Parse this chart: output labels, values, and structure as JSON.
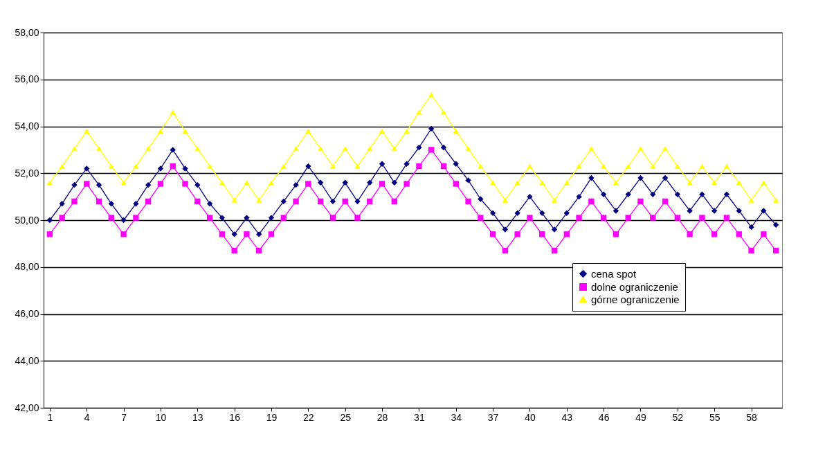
{
  "chart_data": {
    "type": "line",
    "x": [
      1,
      2,
      3,
      4,
      5,
      6,
      7,
      8,
      9,
      10,
      11,
      12,
      13,
      14,
      15,
      16,
      17,
      18,
      19,
      20,
      21,
      22,
      23,
      24,
      25,
      26,
      27,
      28,
      29,
      30,
      31,
      32,
      33,
      34,
      35,
      36,
      37,
      38,
      39,
      40,
      41,
      42,
      43,
      44,
      45,
      46,
      47,
      48,
      49,
      50,
      51,
      52,
      53,
      54,
      55,
      56,
      57,
      58,
      59,
      60
    ],
    "series": [
      {
        "name": "cena spot",
        "color": "#000080",
        "marker": "diamond",
        "values": [
          50.0,
          50.7,
          51.5,
          52.2,
          51.5,
          50.7,
          50.0,
          50.7,
          51.5,
          52.2,
          53.0,
          52.2,
          51.5,
          50.7,
          50.1,
          49.4,
          50.1,
          49.4,
          50.1,
          50.8,
          51.5,
          52.3,
          51.6,
          50.8,
          51.6,
          50.8,
          51.6,
          52.4,
          51.6,
          52.4,
          53.1,
          53.9,
          53.1,
          52.4,
          51.7,
          50.9,
          50.3,
          49.6,
          50.3,
          51.0,
          50.3,
          49.6,
          50.3,
          51.0,
          51.8,
          51.1,
          50.4,
          51.1,
          51.8,
          51.1,
          51.8,
          51.1,
          50.4,
          51.1,
          50.4,
          51.1,
          50.4,
          49.7,
          50.4,
          49.8
        ]
      },
      {
        "name": "dolne ograniczenie",
        "color": "#ff00ff",
        "marker": "square",
        "values": [
          49.4,
          50.1,
          50.8,
          51.55,
          50.8,
          50.1,
          49.4,
          50.1,
          50.8,
          51.55,
          52.3,
          51.55,
          50.8,
          50.1,
          49.4,
          48.7,
          49.4,
          48.7,
          49.4,
          50.1,
          50.8,
          51.55,
          50.8,
          50.1,
          50.8,
          50.1,
          50.8,
          51.55,
          50.8,
          51.55,
          52.3,
          53.0,
          52.3,
          51.55,
          50.8,
          50.1,
          49.4,
          48.7,
          49.4,
          50.1,
          49.4,
          48.7,
          49.4,
          50.1,
          50.8,
          50.1,
          49.4,
          50.1,
          50.8,
          50.1,
          50.8,
          50.1,
          49.4,
          50.1,
          49.4,
          50.1,
          49.4,
          48.7,
          49.4,
          48.7
        ]
      },
      {
        "name": "górne ograniczenie",
        "color": "#ffff00",
        "marker": "triangle",
        "values": [
          51.6,
          52.3,
          53.05,
          53.8,
          53.05,
          52.3,
          51.6,
          52.3,
          53.05,
          53.8,
          54.6,
          53.8,
          53.05,
          52.3,
          51.6,
          50.85,
          51.6,
          50.85,
          51.6,
          52.3,
          53.05,
          53.8,
          53.05,
          52.3,
          53.05,
          52.3,
          53.05,
          53.8,
          53.05,
          53.8,
          54.6,
          55.35,
          54.6,
          53.8,
          53.05,
          52.3,
          51.6,
          50.85,
          51.6,
          52.3,
          51.6,
          50.85,
          51.6,
          52.3,
          53.05,
          52.3,
          51.6,
          52.3,
          53.05,
          52.3,
          53.05,
          52.3,
          51.6,
          52.3,
          51.6,
          52.3,
          51.6,
          50.85,
          51.6,
          50.85
        ]
      }
    ],
    "xlim": [
      0.5,
      60.5
    ],
    "xticks": [
      1,
      4,
      7,
      10,
      13,
      16,
      19,
      22,
      25,
      28,
      31,
      34,
      37,
      40,
      43,
      46,
      49,
      52,
      55,
      58
    ],
    "ylim": [
      42,
      58
    ],
    "yticks": [
      {
        "value": 42,
        "label": "42,00"
      },
      {
        "value": 44,
        "label": "44,00"
      },
      {
        "value": 46,
        "label": "46,00"
      },
      {
        "value": 48,
        "label": "48,00"
      },
      {
        "value": 50,
        "label": "50,00"
      },
      {
        "value": 52,
        "label": "52,00"
      },
      {
        "value": 54,
        "label": "54,00"
      },
      {
        "value": 56,
        "label": "56,00"
      },
      {
        "value": 58,
        "label": "58,00"
      }
    ],
    "grid": "y",
    "legend": "bottom right",
    "line_style": "solid"
  }
}
